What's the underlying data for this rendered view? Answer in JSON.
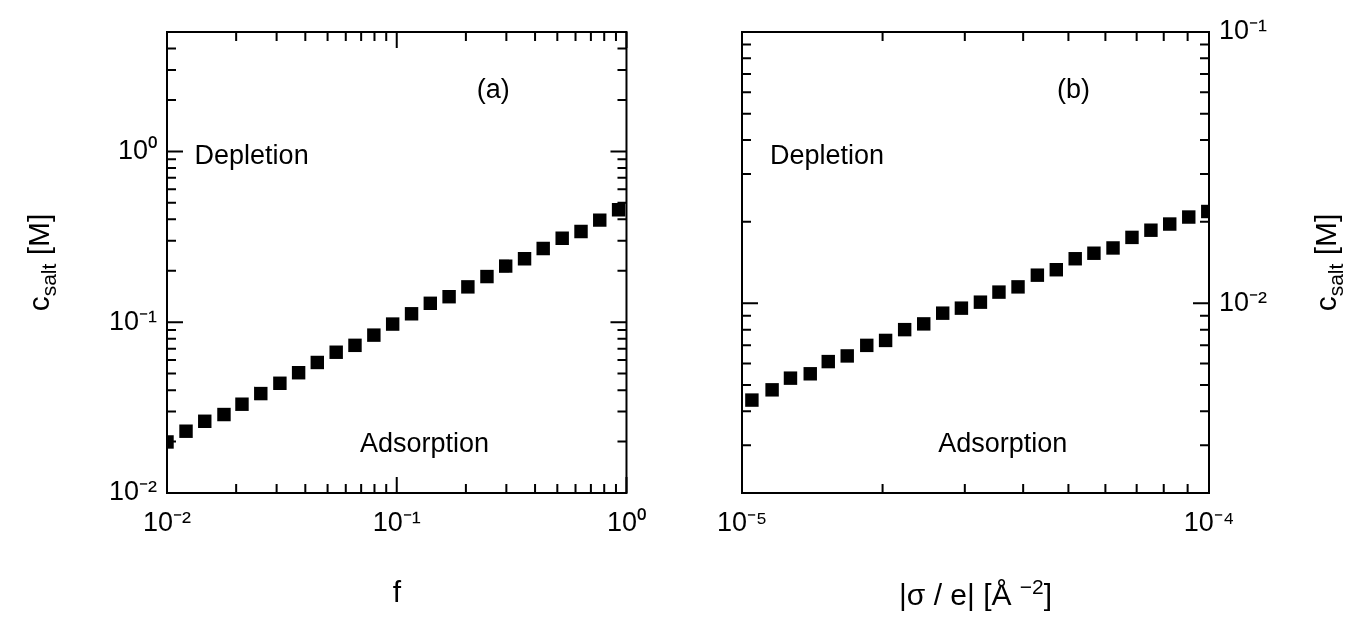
{
  "chart_data": [
    {
      "type": "scatter",
      "xlabel": "f",
      "ylabel": "c$_{salt}$ [M]",
      "log": "xy",
      "marker": "square",
      "grid": false,
      "legend": false,
      "annotations": [
        "(a)",
        "Depletion",
        "Adsorption"
      ],
      "xlim": [
        0.01,
        1
      ],
      "ylim": [
        0.01,
        5
      ],
      "xticks": [
        {
          "value": 0.01,
          "label": "10⁻²"
        },
        {
          "value": 0.02,
          "label": null
        },
        {
          "value": 0.03,
          "label": null
        },
        {
          "value": 0.04,
          "label": null
        },
        {
          "value": 0.05,
          "label": null
        },
        {
          "value": 0.06,
          "label": null
        },
        {
          "value": 0.07,
          "label": null
        },
        {
          "value": 0.08,
          "label": null
        },
        {
          "value": 0.09,
          "label": null
        },
        {
          "value": 0.1,
          "label": "10⁻¹"
        },
        {
          "value": 0.2,
          "label": null
        },
        {
          "value": 0.3,
          "label": null
        },
        {
          "value": 0.4,
          "label": null
        },
        {
          "value": 0.5,
          "label": null
        },
        {
          "value": 0.6,
          "label": null
        },
        {
          "value": 0.7,
          "label": null
        },
        {
          "value": 0.8,
          "label": null
        },
        {
          "value": 0.9,
          "label": null
        },
        {
          "value": 1,
          "label": "10⁰"
        }
      ],
      "yticks": [
        {
          "value": 0.01,
          "label": "10⁻²"
        },
        {
          "value": 0.02,
          "label": null
        },
        {
          "value": 0.03,
          "label": null
        },
        {
          "value": 0.04,
          "label": null
        },
        {
          "value": 0.05,
          "label": null
        },
        {
          "value": 0.06,
          "label": null
        },
        {
          "value": 0.07,
          "label": null
        },
        {
          "value": 0.08,
          "label": null
        },
        {
          "value": 0.09,
          "label": null
        },
        {
          "value": 0.1,
          "label": "10⁻¹"
        },
        {
          "value": 0.2,
          "label": null
        },
        {
          "value": 0.3,
          "label": null
        },
        {
          "value": 0.4,
          "label": null
        },
        {
          "value": 0.5,
          "label": null
        },
        {
          "value": 0.6,
          "label": null
        },
        {
          "value": 0.7,
          "label": null
        },
        {
          "value": 0.8,
          "label": null
        },
        {
          "value": 0.9,
          "label": null
        },
        {
          "value": 1,
          "label": "10⁰"
        },
        {
          "value": 2,
          "label": null
        },
        {
          "value": 3,
          "label": null
        },
        {
          "value": 4,
          "label": null
        }
      ],
      "series": [
        {
          "color": "#000000",
          "x": [
            0.01,
            0.0121,
            0.0146,
            0.0177,
            0.0212,
            0.0256,
            0.031,
            0.0374,
            0.0451,
            0.0545,
            0.0658,
            0.0795,
            0.096,
            0.116,
            0.14,
            0.169,
            0.204,
            0.247,
            0.298,
            0.36,
            0.434,
            0.525,
            0.634,
            0.765,
            0.924
          ],
          "values": [
            0.0199,
            0.023,
            0.0263,
            0.0288,
            0.0331,
            0.0382,
            0.0439,
            0.0506,
            0.0581,
            0.0667,
            0.0732,
            0.084,
            0.0975,
            0.112,
            0.129,
            0.141,
            0.161,
            0.185,
            0.213,
            0.235,
            0.27,
            0.31,
            0.34,
            0.396,
            0.455
          ]
        }
      ]
    },
    {
      "type": "scatter",
      "xlabel": "|σ / e| [Å $^{−2}$]",
      "ylabel": "c$_{salt}$ [M]",
      "log": "xy",
      "marker": "square",
      "grid": false,
      "legend": false,
      "annotations": [
        "(b)",
        "Depletion",
        "Adsorption"
      ],
      "xlim": [
        1e-05,
        0.0001
      ],
      "ylim": [
        0.002,
        0.1
      ],
      "xticks": [
        {
          "value": 1e-05,
          "label": "10⁻⁵"
        },
        {
          "value": 2e-05,
          "label": null
        },
        {
          "value": 3e-05,
          "label": null
        },
        {
          "value": 4e-05,
          "label": null
        },
        {
          "value": 5e-05,
          "label": null
        },
        {
          "value": 6e-05,
          "label": null
        },
        {
          "value": 7e-05,
          "label": null
        },
        {
          "value": 8e-05,
          "label": null
        },
        {
          "value": 9e-05,
          "label": null
        },
        {
          "value": 0.0001,
          "label": "10⁻⁴"
        }
      ],
      "yticks": [
        {
          "value": 0.002,
          "label": null
        },
        {
          "value": 0.003,
          "label": null
        },
        {
          "value": 0.004,
          "label": null
        },
        {
          "value": 0.005,
          "label": null
        },
        {
          "value": 0.006,
          "label": null
        },
        {
          "value": 0.007,
          "label": null
        },
        {
          "value": 0.008,
          "label": null
        },
        {
          "value": 0.009,
          "label": null
        },
        {
          "value": 0.01,
          "label": "10⁻²"
        },
        {
          "value": 0.02,
          "label": null
        },
        {
          "value": 0.03,
          "label": null
        },
        {
          "value": 0.04,
          "label": null
        },
        {
          "value": 0.05,
          "label": null
        },
        {
          "value": 0.06,
          "label": null
        },
        {
          "value": 0.07,
          "label": null
        },
        {
          "value": 0.08,
          "label": null
        },
        {
          "value": 0.09,
          "label": null
        },
        {
          "value": 0.1,
          "label": "10⁻¹"
        }
      ],
      "series": [
        {
          "color": "#000000",
          "x": [
            1.05e-05,
            1.16e-05,
            1.27e-05,
            1.4e-05,
            1.53e-05,
            1.68e-05,
            1.85e-05,
            2.03e-05,
            2.23e-05,
            2.45e-05,
            2.69e-05,
            2.95e-05,
            3.24e-05,
            3.55e-05,
            3.9e-05,
            4.29e-05,
            4.71e-05,
            5.17e-05,
            5.67e-05,
            6.23e-05,
            6.84e-05,
            7.51e-05,
            8.24e-05,
            9.05e-05,
            9.94e-05
          ],
          "values": [
            0.0044,
            0.0048,
            0.0053,
            0.0055,
            0.0061,
            0.0064,
            0.007,
            0.0073,
            0.008,
            0.0084,
            0.0092,
            0.0096,
            0.0101,
            0.011,
            0.0115,
            0.0127,
            0.0133,
            0.0146,
            0.0153,
            0.016,
            0.0175,
            0.0186,
            0.0196,
            0.0208,
            0.0218
          ]
        }
      ]
    }
  ]
}
